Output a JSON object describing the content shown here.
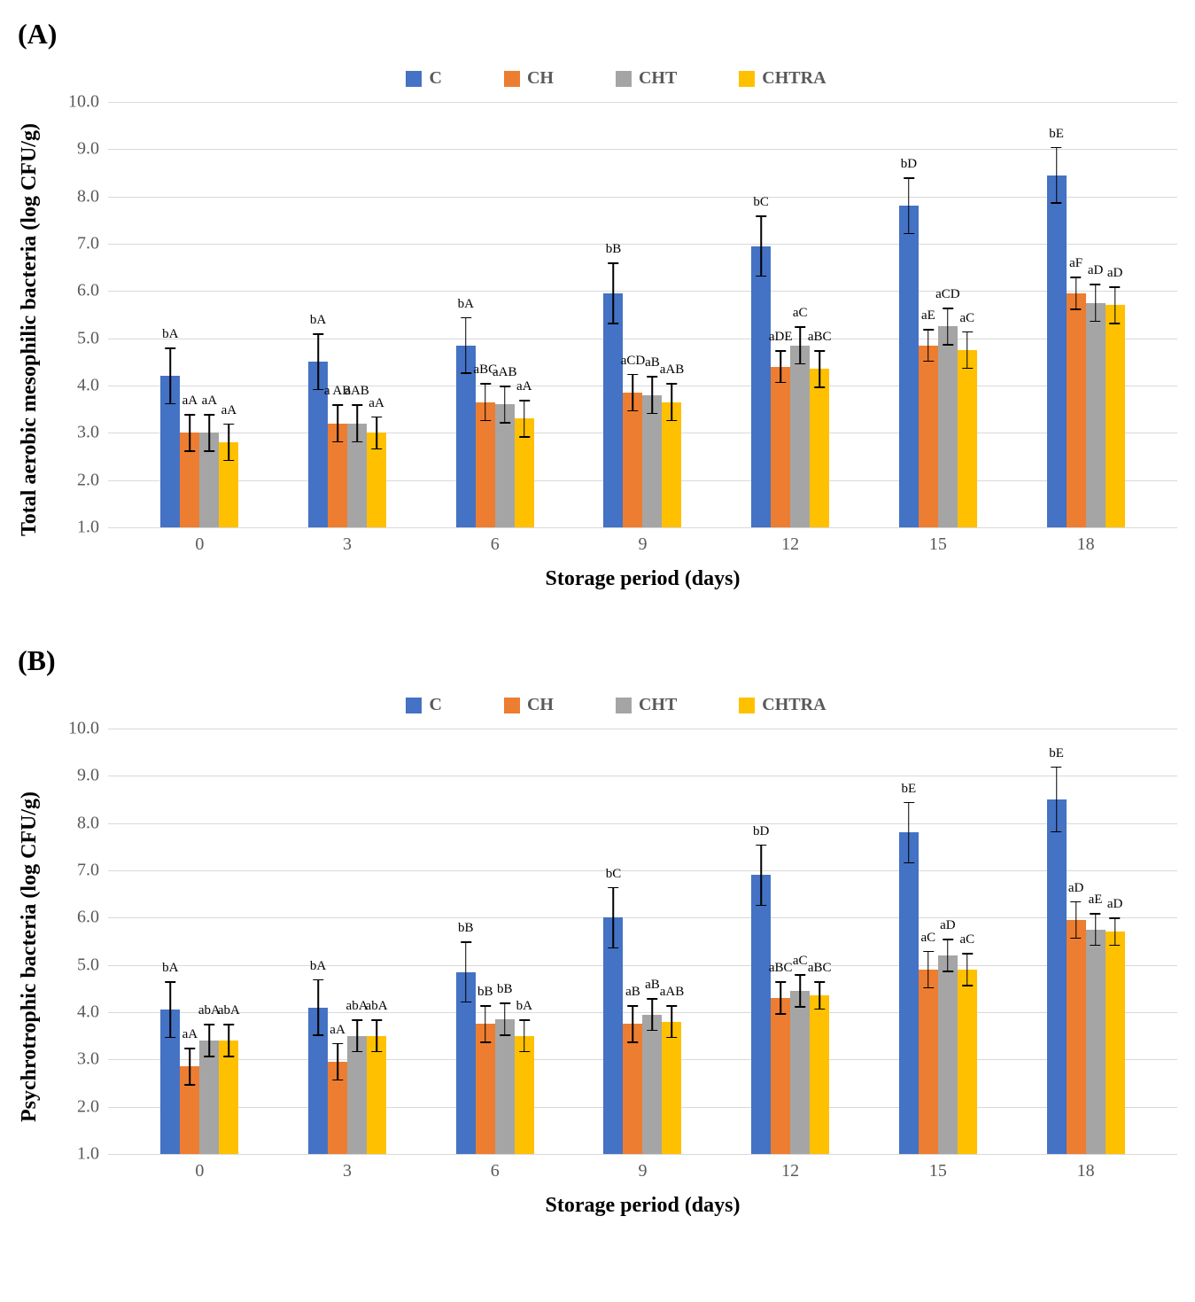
{
  "panels": [
    {
      "label": "(A)",
      "ylabel": "Total aerobic mesophilic bacteria (log CFU/g)",
      "xlabel": "Storage period (days)",
      "ylim": [
        1.0,
        10.0
      ],
      "ytick_step": 1.0,
      "legend": [
        {
          "name": "C",
          "color": "#4472c4"
        },
        {
          "name": "CH",
          "color": "#ed7d31"
        },
        {
          "name": "CHT",
          "color": "#a5a5a5"
        },
        {
          "name": "CHTRA",
          "color": "#ffc000"
        }
      ],
      "categories": [
        "0",
        "3",
        "6",
        "9",
        "12",
        "15",
        "18"
      ],
      "series": {
        "C": {
          "values": [
            4.2,
            4.5,
            4.85,
            5.95,
            6.95,
            7.8,
            8.45
          ],
          "errs": [
            0.6,
            0.6,
            0.6,
            0.65,
            0.65,
            0.6,
            0.6
          ],
          "sig": [
            "bA",
            "bA",
            "bA",
            "bB",
            "bC",
            "bD",
            "bE"
          ]
        },
        "CH": {
          "values": [
            3.0,
            3.2,
            3.65,
            3.85,
            4.4,
            4.85,
            5.95
          ],
          "errs": [
            0.4,
            0.4,
            0.4,
            0.4,
            0.35,
            0.35,
            0.35
          ],
          "sig": [
            "aA",
            "a AB",
            "aBC",
            "aCD",
            "aDE",
            "aE",
            "aF"
          ]
        },
        "CHT": {
          "values": [
            3.0,
            3.2,
            3.6,
            3.8,
            4.85,
            5.25,
            5.75
          ],
          "errs": [
            0.4,
            0.4,
            0.4,
            0.4,
            0.4,
            0.4,
            0.4
          ],
          "sig": [
            "aA",
            "aAB",
            "aAB",
            "aB",
            "aC",
            "aCD",
            "aD"
          ]
        },
        "CHTRA": {
          "values": [
            2.8,
            3.0,
            3.3,
            3.65,
            4.35,
            4.75,
            5.7
          ],
          "errs": [
            0.4,
            0.35,
            0.4,
            0.4,
            0.4,
            0.4,
            0.4
          ],
          "sig": [
            "aA",
            "aA",
            "aA",
            "aAB",
            "aBC",
            "aC",
            "aD"
          ]
        }
      }
    },
    {
      "label": "(B)",
      "ylabel": "Psychrotrophic bacteria (log CFU/g)",
      "xlabel": "Storage period (days)",
      "ylim": [
        1.0,
        10.0
      ],
      "ytick_step": 1.0,
      "legend": [
        {
          "name": "C",
          "color": "#4472c4"
        },
        {
          "name": "CH",
          "color": "#ed7d31"
        },
        {
          "name": "CHT",
          "color": "#a5a5a5"
        },
        {
          "name": "CHTRA",
          "color": "#ffc000"
        }
      ],
      "categories": [
        "0",
        "3",
        "6",
        "9",
        "12",
        "15",
        "18"
      ],
      "series": {
        "C": {
          "values": [
            4.05,
            4.1,
            4.85,
            6.0,
            6.9,
            7.8,
            8.5
          ],
          "errs": [
            0.6,
            0.6,
            0.65,
            0.65,
            0.65,
            0.65,
            0.7
          ],
          "sig": [
            "bA",
            "bA",
            "bB",
            "bC",
            "bD",
            "bE",
            "bE"
          ]
        },
        "CH": {
          "values": [
            2.85,
            2.95,
            3.75,
            3.75,
            4.3,
            4.9,
            5.95
          ],
          "errs": [
            0.4,
            0.4,
            0.4,
            0.4,
            0.35,
            0.4,
            0.4
          ],
          "sig": [
            "aA",
            "aA",
            "bB",
            "aB",
            "aBC",
            "aC",
            "aD"
          ]
        },
        "CHT": {
          "values": [
            3.4,
            3.5,
            3.85,
            3.95,
            4.45,
            5.2,
            5.75
          ],
          "errs": [
            0.35,
            0.35,
            0.35,
            0.35,
            0.35,
            0.35,
            0.35
          ],
          "sig": [
            "abA",
            "abA",
            "bB",
            "aB",
            "aC",
            "aD",
            "aE"
          ]
        },
        "CHTRA": {
          "values": [
            3.4,
            3.5,
            3.5,
            3.8,
            4.35,
            4.9,
            5.7
          ],
          "errs": [
            0.35,
            0.35,
            0.35,
            0.35,
            0.3,
            0.35,
            0.3
          ],
          "sig": [
            "abA",
            "abA",
            "bA",
            "aAB",
            "aBC",
            "aC",
            "aD"
          ]
        }
      }
    }
  ]
}
